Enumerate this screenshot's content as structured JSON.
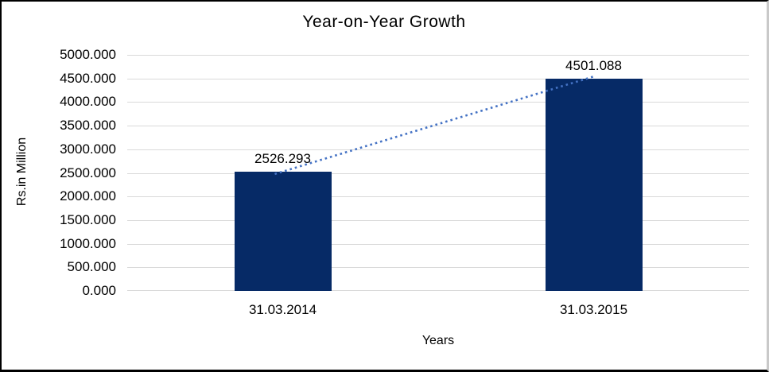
{
  "chart_data": {
    "type": "bar",
    "title": "Year-on-Year Growth",
    "xlabel": "Years",
    "ylabel": "Rs.in Million",
    "categories": [
      "31.03.2014",
      "31.03.2015"
    ],
    "values": [
      2526.293,
      4501.088
    ],
    "data_labels": [
      "2526.293",
      "4501.088"
    ],
    "ylim": [
      0,
      5000
    ],
    "ytick_step": 500,
    "ytick_decimals": 3,
    "grid": true,
    "legend": "none",
    "trendline": {
      "type": "linear",
      "style": "dotted",
      "color": "#4472C4"
    },
    "colors": {
      "bar": "#062A66",
      "gridline": "#D9D9D9",
      "text": "#000000",
      "background": "#FFFFFF",
      "frame_border": "#000000"
    }
  }
}
